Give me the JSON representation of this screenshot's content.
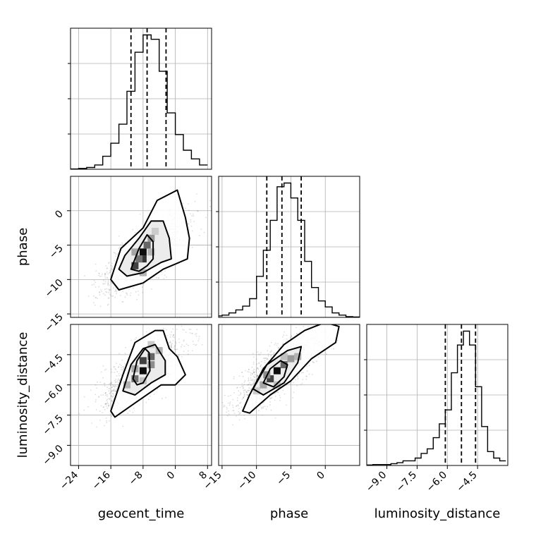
{
  "chart_data": {
    "type": "corner",
    "parameters": [
      "geocent_time",
      "phase",
      "luminosity_distance"
    ],
    "axis_labels": {
      "geocent_time": "geocent_time",
      "phase": "phase",
      "luminosity_distance": "luminosity_distance"
    },
    "ranges": {
      "geocent_time": [
        -26,
        9
      ],
      "phase": [
        -15.5,
        5
      ],
      "luminosity_distance": [
        -10.0,
        -3.0
      ]
    },
    "ticks": {
      "geocent_time": [
        -24,
        -16,
        -8,
        0,
        8
      ],
      "phase": [
        -15,
        -10,
        -5,
        0
      ],
      "luminosity_distance": [
        -9.0,
        -7.5,
        -6.0,
        -4.5
      ]
    },
    "tick_labels": {
      "geocent_time": [
        "−24",
        "−16",
        "−8",
        "0",
        "8"
      ],
      "phase": [
        "−15",
        "−10",
        "−5",
        "0"
      ],
      "luminosity_distance": [
        "−9.0",
        "−7.5",
        "−6.0",
        "−4.5"
      ]
    },
    "quantiles": {
      "geocent_time": [
        -11.0,
        -7.0,
        -2.3
      ],
      "phase": [
        -8.5,
        -6.3,
        -3.5
      ],
      "luminosity_distance": [
        -6.1,
        -5.3,
        -4.6
      ]
    },
    "histograms": {
      "geocent_time": {
        "edges": [
          -26,
          -24,
          -22,
          -20,
          -18,
          -16,
          -14,
          -12,
          -10,
          -8,
          -6,
          -4,
          -2,
          0,
          2,
          4,
          6,
          8
        ],
        "counts": [
          0.3,
          1,
          2,
          5,
          15,
          30,
          52,
          90,
          135,
          155,
          150,
          113,
          65,
          40,
          22,
          12,
          5
        ]
      },
      "phase": {
        "edges": [
          -16,
          -15,
          -14,
          -13,
          -12,
          -11,
          -10,
          -9,
          -8,
          -7,
          -6,
          -5,
          -4,
          -3,
          -2,
          -1,
          0,
          1,
          2,
          3,
          4,
          5
        ],
        "counts": [
          2,
          3,
          6,
          10,
          15,
          25,
          55,
          90,
          130,
          175,
          180,
          160,
          130,
          75,
          40,
          22,
          14,
          6,
          3,
          1,
          0.5
        ]
      },
      "luminosity_distance": {
        "edges": [
          -10.0,
          -9.7,
          -9.4,
          -9.1,
          -8.8,
          -8.5,
          -8.2,
          -7.9,
          -7.6,
          -7.3,
          -7.0,
          -6.7,
          -6.4,
          -6.1,
          -5.8,
          -5.5,
          -5.2,
          -4.9,
          -4.6,
          -4.3,
          -4.0,
          -3.7,
          -3.4,
          -3.1
        ],
        "counts": [
          0.5,
          1,
          1,
          1,
          2,
          3,
          5,
          5,
          8,
          13,
          18,
          30,
          45,
          60,
          100,
          130,
          145,
          130,
          85,
          42,
          15,
          8,
          5
        ]
      }
    },
    "joint": [
      {
        "x_param": "geocent_time",
        "y_param": "phase",
        "center": [
          -7.5,
          -6.5
        ],
        "cells": [
          [
            -8,
            -6,
            0.95
          ],
          [
            -8,
            -7,
            0.8
          ],
          [
            -10,
            -8,
            0.75
          ],
          [
            -7,
            -5,
            0.6
          ],
          [
            -9,
            -7,
            0.55
          ],
          [
            -6,
            -4,
            0.4
          ],
          [
            -10,
            -6,
            0.35
          ],
          [
            -6,
            -6,
            0.3
          ],
          [
            -8,
            -9,
            0.3
          ],
          [
            -5,
            -3,
            0.2
          ]
        ],
        "contours": [
          [
            [
              -13.5,
              -5.5
            ],
            [
              -8,
              -2.5
            ],
            [
              -4.5,
              1.5
            ],
            [
              0.5,
              3
            ],
            [
              2.5,
              -1
            ],
            [
              3.5,
              -4
            ],
            [
              3,
              -7
            ],
            [
              -3,
              -8.5
            ],
            [
              -8,
              -10.5
            ],
            [
              -14,
              -11.5
            ],
            [
              -16,
              -10
            ]
          ],
          [
            [
              -12.5,
              -6.5
            ],
            [
              -9,
              -4
            ],
            [
              -6,
              -1.5
            ],
            [
              -3,
              -1.5
            ],
            [
              -1.5,
              -4
            ],
            [
              -1,
              -7
            ],
            [
              -3.5,
              -7.5
            ],
            [
              -8,
              -9
            ],
            [
              -12,
              -9.5
            ],
            [
              -14,
              -8.5
            ]
          ],
          [
            [
              -11,
              -8.5
            ],
            [
              -9,
              -5.5
            ],
            [
              -7,
              -3.5
            ],
            [
              -5.5,
              -4.5
            ],
            [
              -5.5,
              -7
            ],
            [
              -7,
              -8
            ],
            [
              -9,
              -8.8
            ]
          ]
        ]
      },
      {
        "x_param": "geocent_time",
        "y_param": "luminosity_distance",
        "center": [
          -8,
          -5.3
        ],
        "cells": [
          [
            -8,
            -5.3,
            0.95
          ],
          [
            -8,
            -4.8,
            0.75
          ],
          [
            -6,
            -4.6,
            0.6
          ],
          [
            -10,
            -5.7,
            0.55
          ],
          [
            -6,
            -5.0,
            0.45
          ],
          [
            -10,
            -5.2,
            0.35
          ],
          [
            -12,
            -6.0,
            0.3
          ],
          [
            -4,
            -4.3,
            0.3
          ],
          [
            -8,
            -5.8,
            0.25
          ],
          [
            -6,
            -4.0,
            0.2
          ]
        ],
        "contours": [
          [
            [
              -16,
              -7.3
            ],
            [
              -13,
              -5.5
            ],
            [
              -10,
              -3.9
            ],
            [
              -5,
              -3.3
            ],
            [
              -3,
              -3.3
            ],
            [
              -1.5,
              -4.2
            ],
            [
              0.5,
              -4.6
            ],
            [
              2.5,
              -5.5
            ],
            [
              0,
              -6.0
            ],
            [
              -3.5,
              -6.0
            ],
            [
              -10,
              -6.9
            ],
            [
              -15,
              -7.6
            ]
          ],
          [
            [
              -13,
              -6.3
            ],
            [
              -11,
              -5.0
            ],
            [
              -8,
              -4.2
            ],
            [
              -5,
              -4.0
            ],
            [
              -2.5,
              -4.8
            ],
            [
              -2.5,
              -5.5
            ],
            [
              -6,
              -5.9
            ],
            [
              -10,
              -6.5
            ]
          ],
          [
            [
              -10.5,
              -5.7
            ],
            [
              -9.5,
              -4.8
            ],
            [
              -7.5,
              -4.2
            ],
            [
              -6.5,
              -4.4
            ],
            [
              -6.3,
              -5.3
            ],
            [
              -8,
              -5.9
            ],
            [
              -9.5,
              -6.0
            ]
          ]
        ]
      },
      {
        "x_param": "phase",
        "y_param": "luminosity_distance",
        "center": [
          -7,
          -5.3
        ],
        "cells": [
          [
            -7,
            -5.3,
            0.95
          ],
          [
            -8,
            -5.7,
            0.75
          ],
          [
            -6,
            -5.0,
            0.6
          ],
          [
            -8.5,
            -5.5,
            0.45
          ],
          [
            -5,
            -4.7,
            0.4
          ],
          [
            -9,
            -6.0,
            0.35
          ],
          [
            -4,
            -4.6,
            0.3
          ],
          [
            -7,
            -6.0,
            0.25
          ],
          [
            -6,
            -4.6,
            0.25
          ],
          [
            -10,
            -6.3,
            0.2
          ]
        ],
        "contours": [
          [
            [
              -12,
              -7.3
            ],
            [
              -11,
              -6.5
            ],
            [
              -9,
              -5.2
            ],
            [
              -6,
              -4.0
            ],
            [
              -3,
              -3.3
            ],
            [
              0,
              -2.9
            ],
            [
              2,
              -3.1
            ],
            [
              1.5,
              -3.9
            ],
            [
              -2,
              -4.7
            ],
            [
              -5,
              -5.8
            ],
            [
              -8,
              -6.5
            ],
            [
              -11,
              -7.4
            ]
          ],
          [
            [
              -10.5,
              -6.2
            ],
            [
              -8.5,
              -5.0
            ],
            [
              -5.5,
              -4.3
            ],
            [
              -3.5,
              -4.1
            ],
            [
              -4,
              -4.9
            ],
            [
              -6,
              -5.9
            ],
            [
              -9,
              -6.5
            ]
          ],
          [
            [
              -9,
              -5.9
            ],
            [
              -8,
              -5.2
            ],
            [
              -6.5,
              -4.8
            ],
            [
              -5.5,
              -5.0
            ],
            [
              -6,
              -5.6
            ],
            [
              -7.5,
              -6.1
            ]
          ]
        ]
      }
    ]
  }
}
